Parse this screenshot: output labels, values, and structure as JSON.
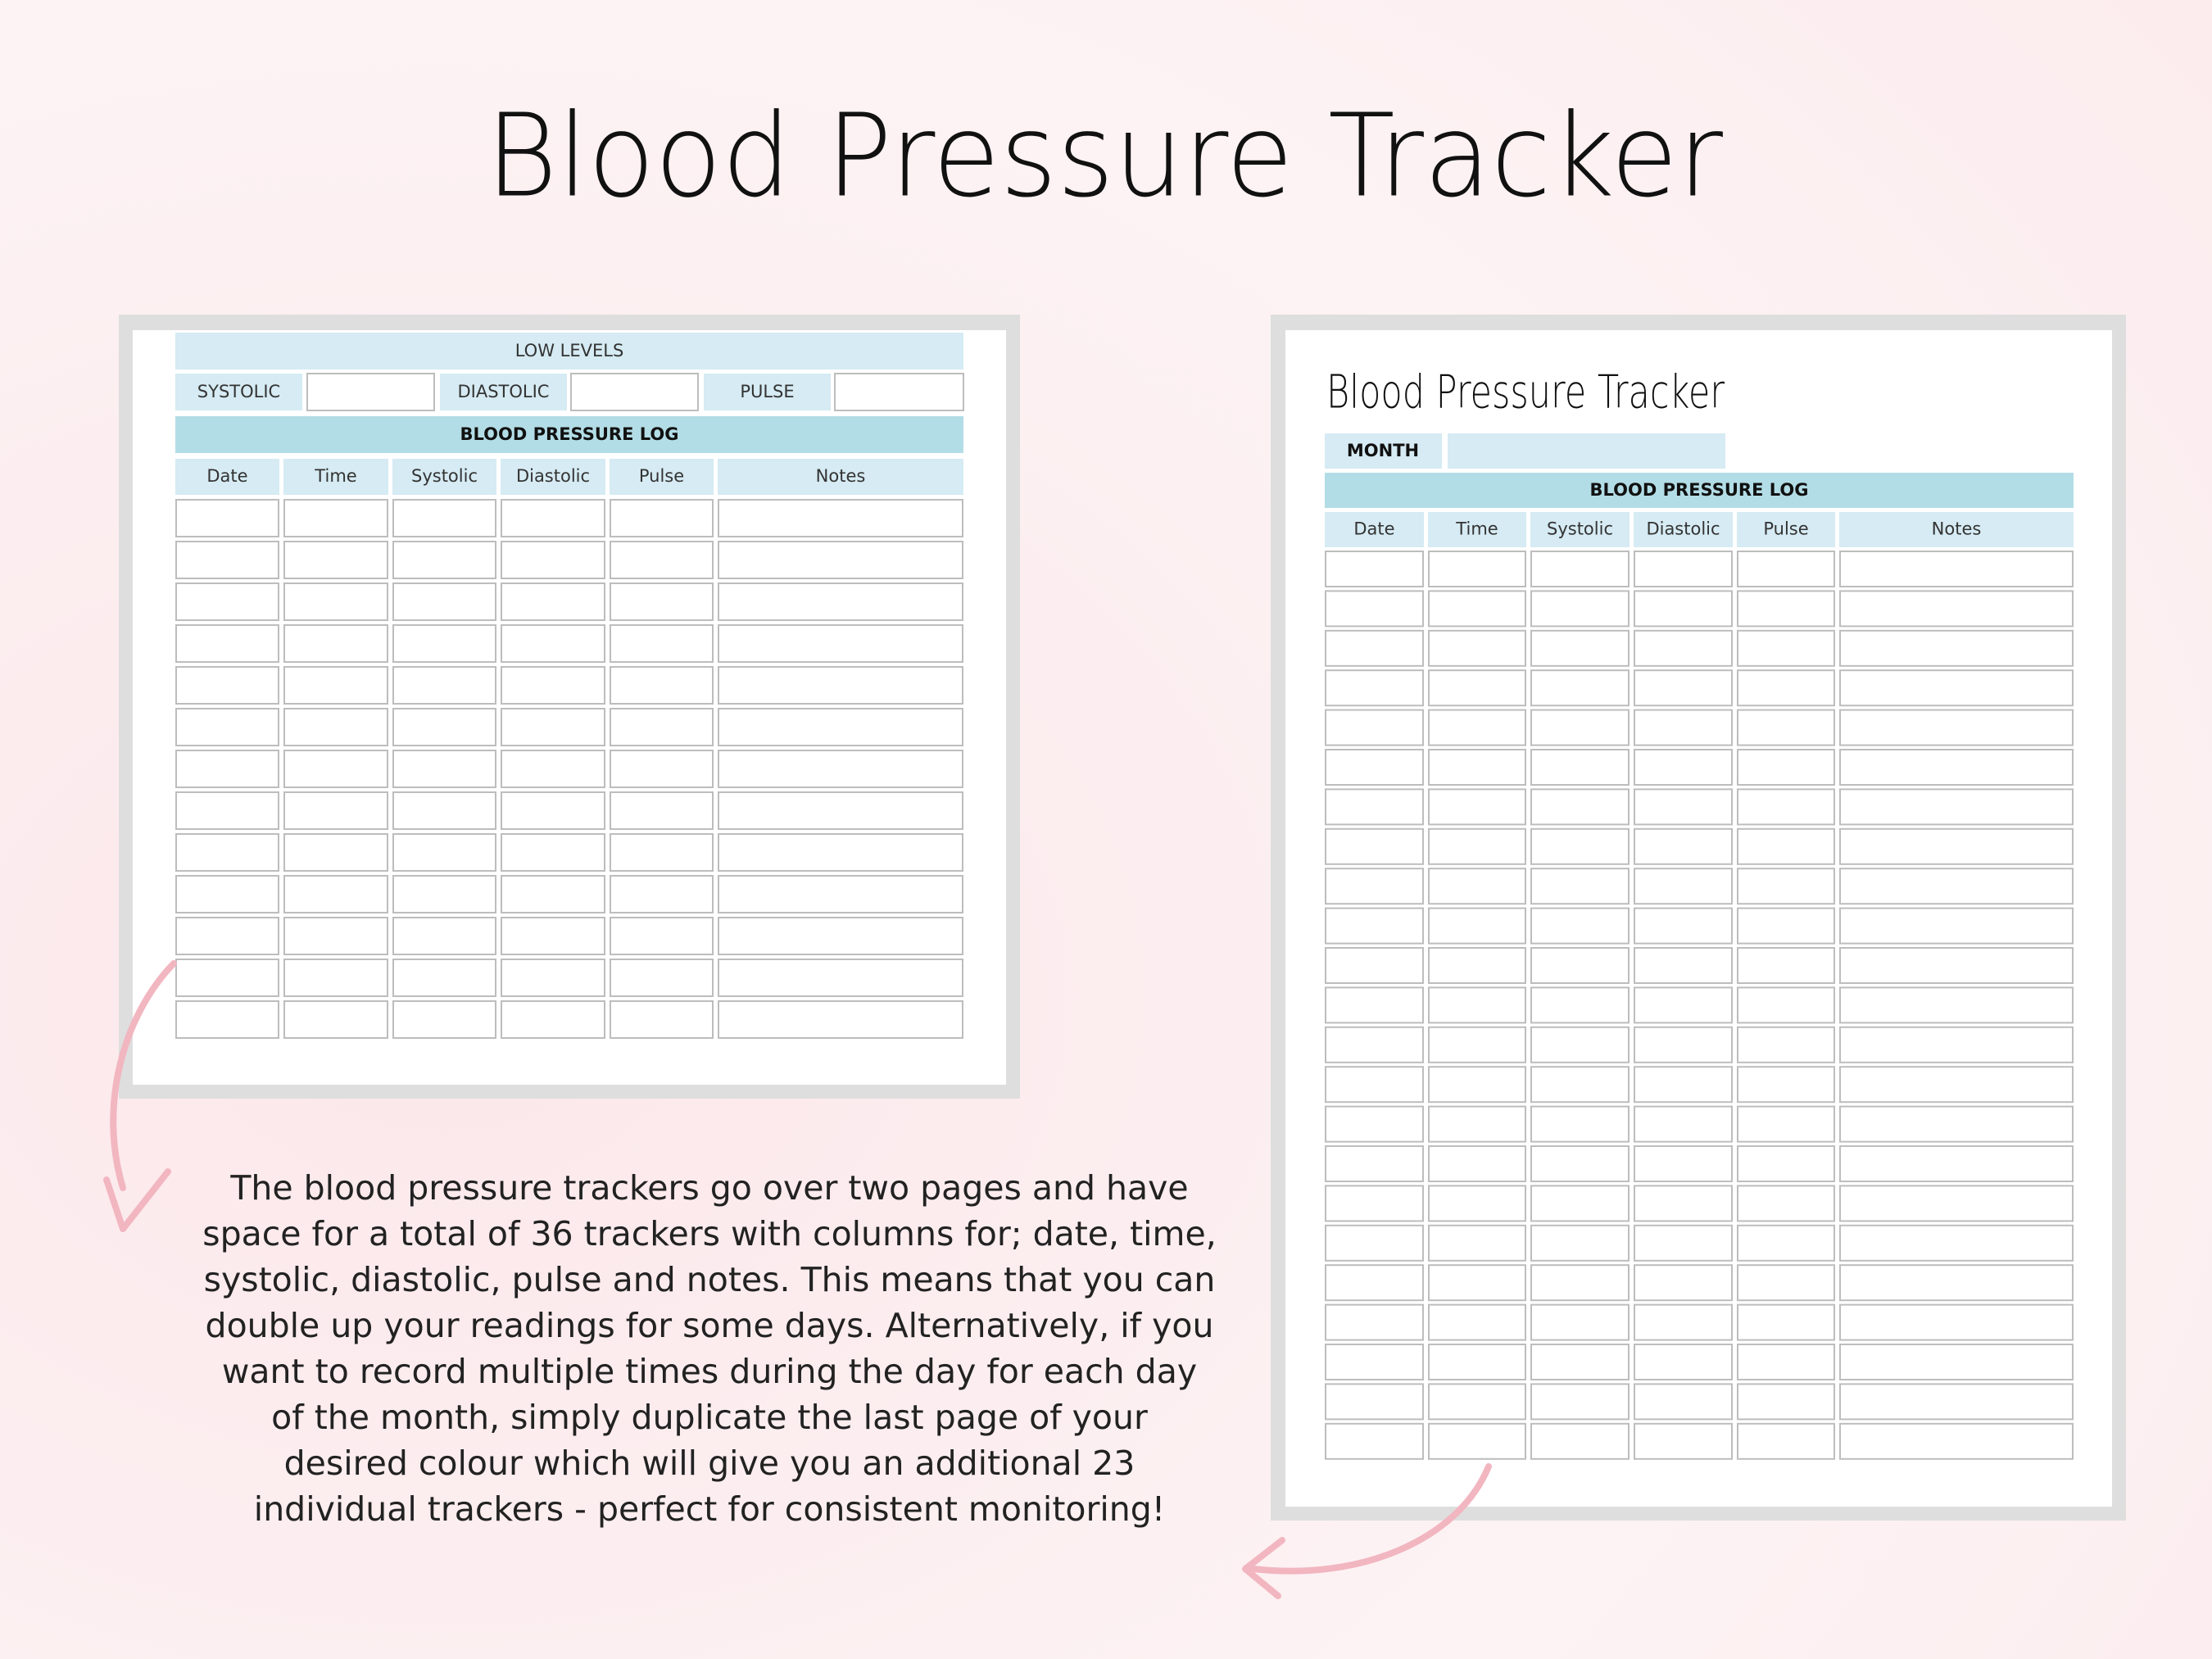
{
  "title": "Blood Pressure Tracker",
  "left_page": {
    "low_levels": "LOW LEVELS",
    "fields": [
      "SYSTOLIC",
      "DIASTOLIC",
      "PULSE"
    ],
    "log_title": "BLOOD PRESSURE LOG",
    "columns": [
      "Date",
      "Time",
      "Systolic",
      "Diastolic",
      "Pulse",
      "Notes"
    ]
  },
  "description": [
    "The blood pressure trackers go over two pages and have",
    "space for a total of 36 trackers with columns for; date, time,",
    "systolic, diastolic, pulse and notes. This means that you can",
    "double up your readings for some days. Alternatively, if you",
    "want to record multiple times during the day for each day",
    "of the month, simply duplicate the last page of your",
    "desired colour which will give you an additional 23",
    "individual trackers - perfect for consistent monitoring!"
  ],
  "right_page": {
    "title": "Blood Pressure Tracker",
    "month": "MONTH",
    "log_title": "BLOOD PRESSURE LOG",
    "columns": [
      "Date",
      "Time",
      "Systolic",
      "Diastolic",
      "Pulse",
      "Notes"
    ]
  }
}
